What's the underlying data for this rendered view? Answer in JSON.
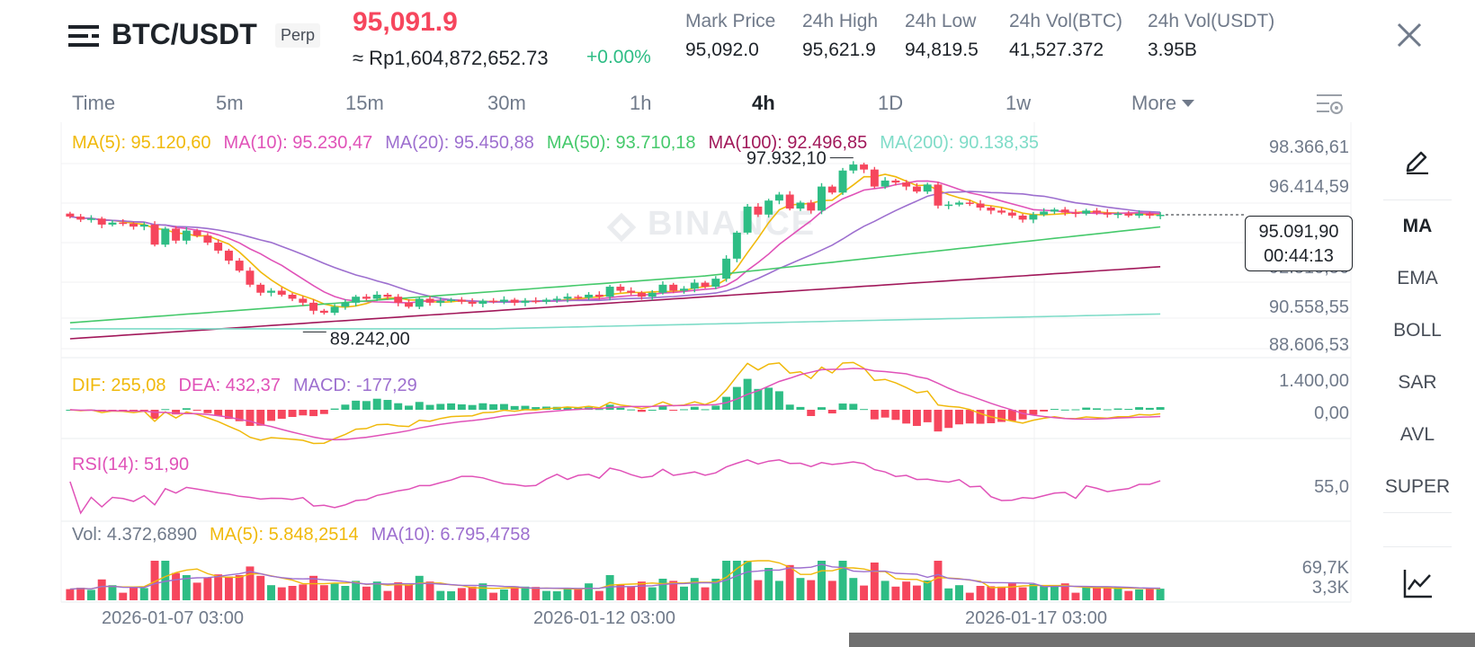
{
  "header": {
    "pair": "BTC/USDT",
    "contract_type": "Perp",
    "last_price": "95,091.9",
    "fiat_price": "≈ Rp1,604,872,652.73",
    "change": "+0.00%",
    "stats": [
      {
        "label": "Mark Price",
        "value": "95,092.0"
      },
      {
        "label": "24h High",
        "value": "95,621.9"
      },
      {
        "label": "24h Low",
        "value": "94,819.5"
      },
      {
        "label": "24h Vol(BTC)",
        "value": "41,527.372"
      },
      {
        "label": "24h Vol(USDT)",
        "value": "3.95B"
      }
    ],
    "icons": {
      "menu": "menu-icon",
      "close": "close-icon"
    }
  },
  "timeframes": {
    "items": [
      "Time",
      "5m",
      "15m",
      "30m",
      "1h",
      "4h",
      "1D",
      "1w",
      "More"
    ],
    "active": "4h"
  },
  "watermark": "BINANCE",
  "main_legend": [
    {
      "text": "MA(5): 95.120,60",
      "color": "#f0b90b"
    },
    {
      "text": "MA(10): 95.230,47",
      "color": "#e052b8"
    },
    {
      "text": "MA(20): 95.450,88",
      "color": "#9d6fcf"
    },
    {
      "text": "MA(50): 93.710,18",
      "color": "#45c96b"
    },
    {
      "text": "MA(100): 92.496,85",
      "color": "#a1185a"
    },
    {
      "text": "MA(200): 90.138,35",
      "color": "#7fdcc8"
    }
  ],
  "macd_legend": [
    {
      "text": "DIF: 255,08",
      "color": "#f0b90b"
    },
    {
      "text": "DEA: 432,37",
      "color": "#e052b8"
    },
    {
      "text": "MACD: -177,29",
      "color": "#9d6fcf"
    }
  ],
  "rsi_legend": [
    {
      "text": "RSI(14): 51,90",
      "color": "#e052b8"
    }
  ],
  "vol_legend": [
    {
      "text": "Vol: 4.372,6890",
      "color": "#707a8a"
    },
    {
      "text": "MA(5): 5.848,2514",
      "color": "#f0b90b"
    },
    {
      "text": "MA(10): 6.795,4758",
      "color": "#9d6fcf"
    }
  ],
  "price_tag": {
    "price": "95.091,90",
    "countdown": "00:44:13"
  },
  "indicators": {
    "items": [
      "MA",
      "EMA",
      "BOLL",
      "SAR",
      "AVL",
      "SUPER"
    ],
    "active": "MA",
    "icons": {
      "draw": "pencil-icon",
      "chart": "line-chart-icon",
      "settings": "chart-settings-icon"
    }
  },
  "chart_data": {
    "type": "candlestick",
    "x_ticks": [
      "2026-01-07 03:00",
      "2026-01-12 03:00",
      "2026-01-17 03:00"
    ],
    "y_ticks": [
      "98.366,61",
      "96.414,59",
      "92.510,56",
      "90.558,55",
      "88.606,53"
    ],
    "y_range": [
      88606.53,
      98366.61
    ],
    "high_label": "97.932,10",
    "low_label": "89.242,00",
    "last_price": 95091.9,
    "close_series": [
      95000,
      94850,
      94900,
      94600,
      94700,
      94650,
      94500,
      94600,
      93600,
      94400,
      93800,
      94300,
      94050,
      93700,
      93300,
      92800,
      92300,
      91600,
      91200,
      91300,
      91100,
      90900,
      90700,
      90300,
      90200,
      90500,
      90700,
      91000,
      90900,
      91100,
      91000,
      90700,
      90500,
      90900,
      90700,
      90800,
      90850,
      90750,
      90650,
      90800,
      90750,
      90850,
      90700,
      90800,
      90750,
      90850,
      90900,
      91000,
      90950,
      91100,
      91000,
      91500,
      91300,
      91200,
      91000,
      91200,
      91600,
      91300,
      91400,
      91700,
      91500,
      91900,
      92900,
      94200,
      95500,
      95100,
      95800,
      96100,
      95400,
      95700,
      95300,
      96500,
      96200,
      97300,
      97600,
      97350,
      96500,
      96800,
      96700,
      96500,
      96250,
      96600,
      95550,
      95600,
      95700,
      95650,
      95450,
      95300,
      95200,
      95050,
      94850,
      95100,
      95250,
      95350,
      95200,
      95150,
      95300,
      95200,
      95100,
      95150,
      95050,
      95150,
      95050,
      95092
    ],
    "macd_ticks": [
      "1.400,00",
      "0,00"
    ],
    "rsi_ticks": [
      "55,0"
    ],
    "vol_ticks": [
      "69,7K",
      "3,3K"
    ]
  }
}
